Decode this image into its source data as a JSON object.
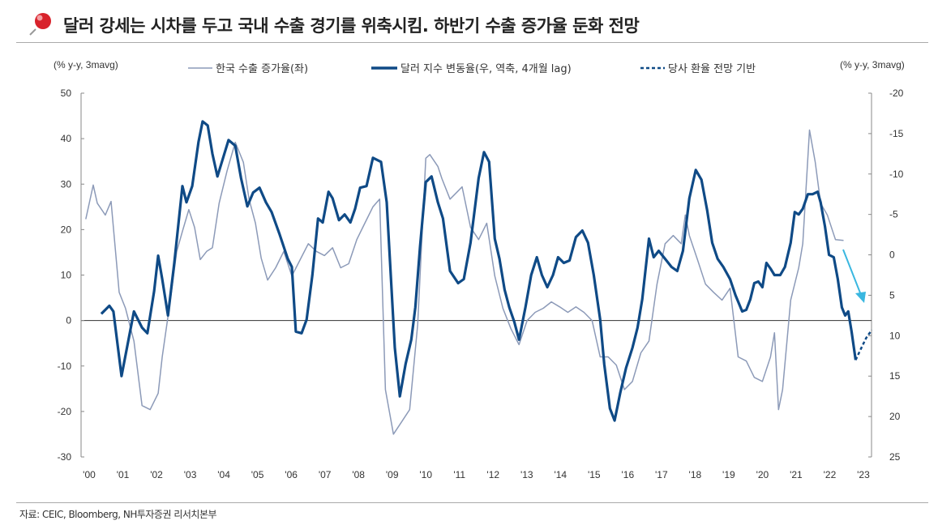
{
  "title": "달러 강세는 시차를 두고 국내 수출 경기를 위축시킴. 하반기 수출 증가율 둔화 전망",
  "source": "자료: CEIC, Bloomberg, NH투자증권 리서치본부",
  "icons": {
    "title_icon": "pushpin-icon",
    "annotation": "arrow-down-right"
  },
  "colors": {
    "exports": "#8c9ab8",
    "dollar": "#0f4a86",
    "forecast": "#0f4a86",
    "arrow": "#3ab7e0"
  },
  "chart_data": {
    "type": "line",
    "title": "",
    "left_axis": {
      "label": "(% y-y, 3mavg)",
      "range": [
        -30,
        50
      ],
      "ticks": [
        "50",
        "40",
        "30",
        "20",
        "10",
        "0",
        "-10",
        "-20",
        "-30"
      ]
    },
    "right_axis": {
      "label": "(% y-y, 3mavg)",
      "range": [
        -20,
        25
      ],
      "inverted": true,
      "ticks": [
        "-20",
        "-15",
        "-10",
        "-5",
        "0",
        "5",
        "10",
        "15",
        "20",
        "25"
      ]
    },
    "x_ticks": [
      "'00",
      "'01",
      "'02",
      "'03",
      "'04",
      "'05",
      "'06",
      "'07",
      "'08",
      "'09",
      "'10",
      "'11",
      "'12",
      "'13",
      "'14",
      "'15",
      "'16",
      "'17",
      "'18",
      "'19",
      "'20",
      "'21",
      "'22",
      "'23"
    ],
    "grid": false,
    "legend_position": "top",
    "series": [
      {
        "name": "한국 수출 증가율(좌)",
        "axis": "left",
        "style": "thin",
        "points": [
          [
            1999.9,
            22.3
          ],
          [
            2000.12,
            29.8
          ],
          [
            2000.24,
            25.8
          ],
          [
            2000.48,
            23.2
          ],
          [
            2000.65,
            26.2
          ],
          [
            2000.89,
            6.2
          ],
          [
            2001.08,
            2.7
          ],
          [
            2001.33,
            -4.5
          ],
          [
            2001.57,
            -18.7
          ],
          [
            2001.81,
            -19.6
          ],
          [
            2002.05,
            -16.0
          ],
          [
            2002.17,
            -8.0
          ],
          [
            2002.41,
            4.5
          ],
          [
            2002.6,
            15.2
          ],
          [
            2002.77,
            19.6
          ],
          [
            2002.96,
            24.4
          ],
          [
            2003.13,
            20.5
          ],
          [
            2003.3,
            13.4
          ],
          [
            2003.49,
            15.2
          ],
          [
            2003.66,
            16.0
          ],
          [
            2003.86,
            25.8
          ],
          [
            2004.1,
            33.0
          ],
          [
            2004.34,
            39.2
          ],
          [
            2004.58,
            34.8
          ],
          [
            2004.75,
            26.7
          ],
          [
            2004.94,
            21.4
          ],
          [
            2005.11,
            13.7
          ],
          [
            2005.3,
            8.9
          ],
          [
            2005.54,
            11.6
          ],
          [
            2005.78,
            15.2
          ],
          [
            2006.02,
            9.8
          ],
          [
            2006.27,
            13.4
          ],
          [
            2006.51,
            16.9
          ],
          [
            2006.75,
            15.2
          ],
          [
            2006.99,
            14.3
          ],
          [
            2007.23,
            16.0
          ],
          [
            2007.47,
            11.6
          ],
          [
            2007.71,
            12.5
          ],
          [
            2007.95,
            17.8
          ],
          [
            2008.19,
            21.4
          ],
          [
            2008.43,
            25.0
          ],
          [
            2008.63,
            26.7
          ],
          [
            2008.8,
            -15.2
          ],
          [
            2009.04,
            -25.0
          ],
          [
            2009.28,
            -22.3
          ],
          [
            2009.52,
            -19.6
          ],
          [
            2009.76,
            -0.9
          ],
          [
            2010.0,
            35.7
          ],
          [
            2010.12,
            36.5
          ],
          [
            2010.36,
            33.9
          ],
          [
            2010.48,
            31.2
          ],
          [
            2010.72,
            26.7
          ],
          [
            2010.96,
            28.5
          ],
          [
            2011.08,
            29.4
          ],
          [
            2011.33,
            20.5
          ],
          [
            2011.57,
            17.8
          ],
          [
            2011.81,
            21.4
          ],
          [
            2012.05,
            9.8
          ],
          [
            2012.29,
            2.7
          ],
          [
            2012.53,
            -1.8
          ],
          [
            2012.77,
            -5.3
          ],
          [
            2013.01,
            0
          ],
          [
            2013.25,
            1.8
          ],
          [
            2013.49,
            2.7
          ],
          [
            2013.73,
            4.1
          ],
          [
            2013.98,
            3.0
          ],
          [
            2014.22,
            1.8
          ],
          [
            2014.46,
            3.0
          ],
          [
            2014.7,
            1.8
          ],
          [
            2014.94,
            0
          ],
          [
            2015.18,
            -8.0
          ],
          [
            2015.42,
            -8.0
          ],
          [
            2015.66,
            -9.8
          ],
          [
            2015.9,
            -15.2
          ],
          [
            2016.14,
            -13.4
          ],
          [
            2016.39,
            -7.1
          ],
          [
            2016.63,
            -4.5
          ],
          [
            2016.87,
            8.0
          ],
          [
            2017.11,
            16.9
          ],
          [
            2017.35,
            18.7
          ],
          [
            2017.59,
            16.9
          ],
          [
            2017.71,
            23.2
          ],
          [
            2017.83,
            18.7
          ],
          [
            2018.07,
            13.4
          ],
          [
            2018.31,
            8.0
          ],
          [
            2018.55,
            6.2
          ],
          [
            2018.8,
            4.5
          ],
          [
            2019.04,
            7.1
          ],
          [
            2019.28,
            -8.0
          ],
          [
            2019.52,
            -8.9
          ],
          [
            2019.76,
            -12.5
          ],
          [
            2020.0,
            -13.4
          ],
          [
            2020.24,
            -8.0
          ],
          [
            2020.36,
            -2.7
          ],
          [
            2020.48,
            -19.6
          ],
          [
            2020.6,
            -15.2
          ],
          [
            2020.84,
            4.5
          ],
          [
            2021.08,
            11.6
          ],
          [
            2021.2,
            16.9
          ],
          [
            2021.4,
            41.9
          ],
          [
            2021.57,
            34.8
          ],
          [
            2021.73,
            25.8
          ],
          [
            2021.93,
            23.2
          ],
          [
            2022.17,
            17.8
          ],
          [
            2022.41,
            17.6
          ]
        ]
      },
      {
        "name": "달러 지수 변동율(우, 역축, 4개월 lag)",
        "axis": "right",
        "style": "thick",
        "points": [
          [
            2000.36,
            7.3
          ],
          [
            2000.6,
            6.3
          ],
          [
            2000.72,
            7.0
          ],
          [
            2000.96,
            15.0
          ],
          [
            2001.33,
            7.0
          ],
          [
            2001.57,
            9.0
          ],
          [
            2001.73,
            9.7
          ],
          [
            2001.93,
            4.5
          ],
          [
            2002.05,
            0.1
          ],
          [
            2002.17,
            3.0
          ],
          [
            2002.34,
            7.5
          ],
          [
            2002.53,
            1.0
          ],
          [
            2002.77,
            -8.5
          ],
          [
            2002.89,
            -6.5
          ],
          [
            2003.06,
            -8.5
          ],
          [
            2003.25,
            -14.0
          ],
          [
            2003.37,
            -16.5
          ],
          [
            2003.52,
            -16.0
          ],
          [
            2003.66,
            -12.5
          ],
          [
            2003.81,
            -9.7
          ],
          [
            2003.98,
            -12.0
          ],
          [
            2004.14,
            -14.2
          ],
          [
            2004.34,
            -13.5
          ],
          [
            2004.51,
            -9.5
          ],
          [
            2004.7,
            -6.0
          ],
          [
            2004.87,
            -7.7
          ],
          [
            2005.06,
            -8.3
          ],
          [
            2005.25,
            -6.5
          ],
          [
            2005.42,
            -5.3
          ],
          [
            2005.66,
            -2.5
          ],
          [
            2005.78,
            -1.0
          ],
          [
            2005.9,
            0.5
          ],
          [
            2006.02,
            1.5
          ],
          [
            2006.14,
            9.5
          ],
          [
            2006.31,
            9.7
          ],
          [
            2006.46,
            8.0
          ],
          [
            2006.63,
            2.5
          ],
          [
            2006.8,
            -4.5
          ],
          [
            2006.94,
            -4.0
          ],
          [
            2007.11,
            -7.8
          ],
          [
            2007.23,
            -7.0
          ],
          [
            2007.42,
            -4.3
          ],
          [
            2007.59,
            -5.0
          ],
          [
            2007.76,
            -4.0
          ],
          [
            2007.9,
            -5.7
          ],
          [
            2008.05,
            -8.3
          ],
          [
            2008.24,
            -8.5
          ],
          [
            2008.43,
            -12.0
          ],
          [
            2008.67,
            -11.5
          ],
          [
            2008.84,
            -6.5
          ],
          [
            2008.96,
            2.5
          ],
          [
            2009.08,
            11.5
          ],
          [
            2009.23,
            17.5
          ],
          [
            2009.4,
            13.5
          ],
          [
            2009.57,
            10.5
          ],
          [
            2009.69,
            6.5
          ],
          [
            2009.83,
            -1.0
          ],
          [
            2010.0,
            -9.0
          ],
          [
            2010.17,
            -9.7
          ],
          [
            2010.36,
            -6.5
          ],
          [
            2010.51,
            -4.5
          ],
          [
            2010.72,
            2.0
          ],
          [
            2010.96,
            3.5
          ],
          [
            2011.13,
            3.0
          ],
          [
            2011.33,
            -1.5
          ],
          [
            2011.57,
            -9.5
          ],
          [
            2011.73,
            -12.7
          ],
          [
            2011.88,
            -11.5
          ],
          [
            2012.05,
            -2.0
          ],
          [
            2012.19,
            0.5
          ],
          [
            2012.34,
            4.3
          ],
          [
            2012.48,
            6.5
          ],
          [
            2012.63,
            8.3
          ],
          [
            2012.77,
            10.5
          ],
          [
            2012.96,
            6.5
          ],
          [
            2013.13,
            2.5
          ],
          [
            2013.3,
            0.3
          ],
          [
            2013.45,
            2.5
          ],
          [
            2013.61,
            4.0
          ],
          [
            2013.78,
            2.5
          ],
          [
            2013.93,
            0.3
          ],
          [
            2014.1,
            1.0
          ],
          [
            2014.27,
            0.7
          ],
          [
            2014.46,
            -2.2
          ],
          [
            2014.65,
            -3.0
          ],
          [
            2014.82,
            -1.5
          ],
          [
            2014.99,
            2.5
          ],
          [
            2015.18,
            8.0
          ],
          [
            2015.3,
            13.5
          ],
          [
            2015.47,
            19.0
          ],
          [
            2015.61,
            20.5
          ],
          [
            2015.78,
            17.0
          ],
          [
            2015.95,
            14.0
          ],
          [
            2016.14,
            11.5
          ],
          [
            2016.29,
            9.0
          ],
          [
            2016.43,
            5.5
          ],
          [
            2016.63,
            -2.0
          ],
          [
            2016.77,
            0.3
          ],
          [
            2016.92,
            -0.5
          ],
          [
            2017.11,
            0.5
          ],
          [
            2017.3,
            1.5
          ],
          [
            2017.47,
            2.0
          ],
          [
            2017.64,
            -0.5
          ],
          [
            2017.83,
            -7.0
          ],
          [
            2018.02,
            -10.5
          ],
          [
            2018.19,
            -9.3
          ],
          [
            2018.36,
            -5.5
          ],
          [
            2018.51,
            -1.5
          ],
          [
            2018.67,
            0.5
          ],
          [
            2018.84,
            1.5
          ],
          [
            2019.04,
            3.0
          ],
          [
            2019.2,
            5.0
          ],
          [
            2019.4,
            7.0
          ],
          [
            2019.52,
            6.8
          ],
          [
            2019.64,
            5.5
          ],
          [
            2019.76,
            3.5
          ],
          [
            2019.88,
            3.3
          ],
          [
            2020.0,
            4.0
          ],
          [
            2020.12,
            1.0
          ],
          [
            2020.24,
            1.7
          ],
          [
            2020.36,
            2.5
          ],
          [
            2020.53,
            2.5
          ],
          [
            2020.67,
            1.5
          ],
          [
            2020.84,
            -1.5
          ],
          [
            2020.96,
            -5.3
          ],
          [
            2021.08,
            -5.0
          ],
          [
            2021.2,
            -5.7
          ],
          [
            2021.35,
            -7.5
          ],
          [
            2021.49,
            -7.5
          ],
          [
            2021.64,
            -7.8
          ],
          [
            2021.73,
            -6.5
          ],
          [
            2021.86,
            -3.5
          ],
          [
            2021.98,
            0
          ],
          [
            2022.12,
            0.3
          ],
          [
            2022.24,
            3.0
          ],
          [
            2022.36,
            6.5
          ],
          [
            2022.46,
            7.5
          ],
          [
            2022.55,
            7.0
          ],
          [
            2022.65,
            9.5
          ],
          [
            2022.77,
            13.0
          ]
        ]
      },
      {
        "name": "당사 환율 전망 기반",
        "axis": "right",
        "style": "dashed",
        "points": [
          [
            2022.77,
            13.0
          ],
          [
            2022.94,
            11.5
          ],
          [
            2023.08,
            10.3
          ],
          [
            2023.25,
            9.3
          ]
        ]
      }
    ]
  }
}
